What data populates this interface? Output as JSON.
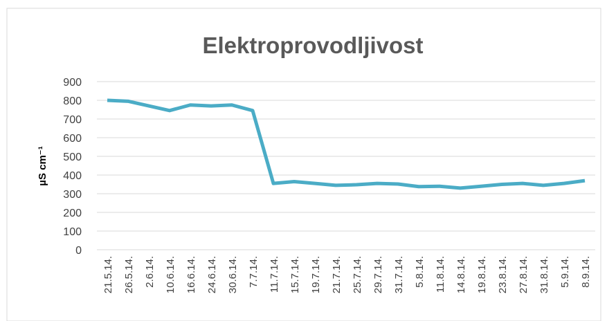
{
  "chart_data": {
    "type": "line",
    "title": "Elektroprovodljivost",
    "y_label": "µS cm⁻¹",
    "categories": [
      "21.5.14.",
      "26.5.14.",
      "2.6.14.",
      "10.6.14.",
      "16.6.14.",
      "24.6.14.",
      "30.6.14.",
      "7.7.14.",
      "11.7.14.",
      "15.7.14.",
      "19.7.14.",
      "21.7.14.",
      "25.7.14.",
      "29.7.14.",
      "31.7.14.",
      "5.8.14.",
      "11.8.14.",
      "14.8.14.",
      "19.8.14.",
      "23.8.14.",
      "27.8.14.",
      "31.8.14.",
      "5.9.14.",
      "8.9.14."
    ],
    "series": [
      {
        "name": "Elektroprovodljivost",
        "color": "#4bacc6",
        "values": [
          800,
          795,
          770,
          745,
          775,
          770,
          775,
          745,
          355,
          365,
          355,
          345,
          348,
          355,
          352,
          338,
          340,
          330,
          340,
          350,
          355,
          345,
          355,
          370
        ]
      }
    ],
    "ylim": [
      0,
      900
    ],
    "yticks": [
      0,
      100,
      200,
      300,
      400,
      500,
      600,
      700,
      800,
      900
    ],
    "grid": true
  }
}
